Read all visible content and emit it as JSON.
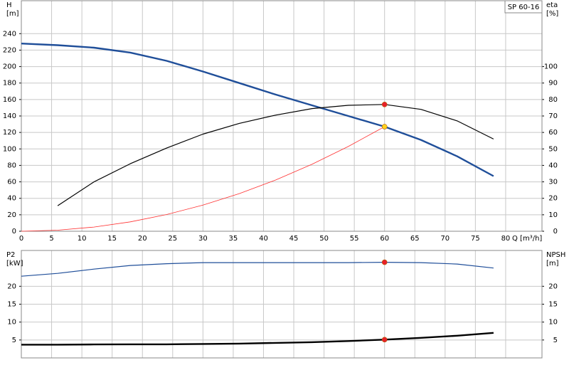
{
  "chart_data": [
    {
      "type": "line",
      "title": "SP 60-16",
      "y_label": "H",
      "y_unit": "[m]",
      "y2_label": "eta",
      "y2_unit": "[%]",
      "x_label": "Q [m³/h]",
      "x": [
        0,
        6,
        12,
        18,
        24,
        30,
        36,
        42,
        48,
        54,
        60,
        66,
        72,
        78
      ],
      "xlim": [
        0,
        86
      ],
      "xticks": [
        0,
        5,
        10,
        15,
        20,
        25,
        30,
        35,
        40,
        45,
        50,
        55,
        60,
        65,
        70,
        75,
        80
      ],
      "ylim": [
        0,
        280
      ],
      "yticks": [
        0,
        20,
        40,
        60,
        80,
        100,
        120,
        140,
        160,
        180,
        200,
        220,
        240
      ],
      "y2lim": [
        0,
        140
      ],
      "y2ticks": [
        0,
        10,
        20,
        30,
        40,
        50,
        60,
        70,
        80,
        90,
        100
      ],
      "grid": true,
      "series": [
        {
          "color": "#1f4e99",
          "values": [
            228,
            226,
            223,
            217,
            207,
            194,
            180,
            166,
            153,
            140,
            127,
            111,
            91,
            67
          ]
        },
        {
          "color": "#000000",
          "axis": "y2",
          "values": [
            null,
            15.5,
            30,
            41,
            50.5,
            59,
            65.5,
            70.5,
            74.5,
            76.5,
            77,
            74,
            67,
            56
          ]
        },
        {
          "color": "#ff3030",
          "values": [
            0,
            1.3,
            5.1,
            11.4,
            20.3,
            31.8,
            45.7,
            62.2,
            81.3,
            102.9,
            127,
            null,
            null,
            null
          ]
        }
      ],
      "points": [
        {
          "x": 60,
          "y": 77,
          "axis": "y2",
          "color": "#e8202a"
        },
        {
          "x": 60,
          "y": 127,
          "color": "#ffd21f"
        }
      ]
    },
    {
      "type": "line",
      "y_label": "P2",
      "y_unit": "[kW]",
      "y2_label": "NPSH",
      "y2_unit": "[m]",
      "x": [
        0,
        6,
        12,
        18,
        24,
        30,
        36,
        42,
        48,
        54,
        60,
        66,
        72,
        78
      ],
      "xlim": [
        0,
        86
      ],
      "xticks": [
        0,
        5,
        10,
        15,
        20,
        25,
        30,
        35,
        40,
        45,
        50,
        55,
        60,
        65,
        70,
        75,
        80
      ],
      "ylim": [
        0,
        30
      ],
      "yticks": [
        5,
        10,
        15,
        20
      ],
      "y2lim": [
        0,
        30
      ],
      "y2ticks": [
        5,
        10,
        15,
        20
      ],
      "grid": true,
      "series": [
        {
          "color": "#1f4e99",
          "values": [
            22.8,
            23.6,
            24.8,
            25.8,
            26.3,
            26.6,
            26.6,
            26.6,
            26.6,
            26.6,
            26.7,
            26.6,
            26.2,
            25.1
          ]
        },
        {
          "color": "#000000",
          "axis": "y2",
          "values": [
            3.7,
            3.7,
            3.75,
            3.8,
            3.8,
            3.9,
            4.0,
            4.2,
            4.4,
            4.7,
            5.1,
            5.6,
            6.2,
            7.0
          ]
        }
      ],
      "points": [
        {
          "x": 60,
          "y": 26.7,
          "color": "#e8202a"
        },
        {
          "x": 60,
          "y": 5.1,
          "axis": "y2",
          "color": "#e8202a"
        }
      ]
    }
  ]
}
